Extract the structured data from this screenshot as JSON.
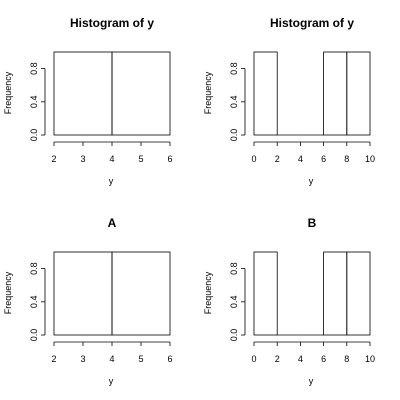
{
  "chart_data": [
    {
      "type": "bar",
      "title": "Histogram of y",
      "xlabel": "y",
      "ylabel": "Frequency",
      "xlim": [
        2,
        6
      ],
      "ylim": [
        0,
        1
      ],
      "xticks": [
        "2",
        "3",
        "4",
        "5",
        "6"
      ],
      "yticks": [
        "0.0",
        "0.4",
        "0.8"
      ],
      "bins": [
        {
          "x0": 2,
          "x1": 4,
          "count": 1
        },
        {
          "x0": 4,
          "x1": 6,
          "count": 1
        }
      ]
    },
    {
      "type": "bar",
      "title": "Histogram of y",
      "xlabel": "y",
      "ylabel": "Frequency",
      "xlim": [
        0,
        10
      ],
      "ylim": [
        0,
        1
      ],
      "xticks": [
        "0",
        "2",
        "4",
        "6",
        "8",
        "10"
      ],
      "yticks": [
        "0.0",
        "0.4",
        "0.8"
      ],
      "bins": [
        {
          "x0": 0,
          "x1": 2,
          "count": 1
        },
        {
          "x0": 2,
          "x1": 4,
          "count": 0
        },
        {
          "x0": 4,
          "x1": 6,
          "count": 0
        },
        {
          "x0": 6,
          "x1": 8,
          "count": 1
        },
        {
          "x0": 8,
          "x1": 10,
          "count": 1
        }
      ]
    },
    {
      "type": "bar",
      "title": "A",
      "xlabel": "y",
      "ylabel": "Frequency",
      "xlim": [
        2,
        6
      ],
      "ylim": [
        0,
        1
      ],
      "xticks": [
        "2",
        "3",
        "4",
        "5",
        "6"
      ],
      "yticks": [
        "0.0",
        "0.4",
        "0.8"
      ],
      "bins": [
        {
          "x0": 2,
          "x1": 4,
          "count": 1
        },
        {
          "x0": 4,
          "x1": 6,
          "count": 1
        }
      ]
    },
    {
      "type": "bar",
      "title": "B",
      "xlabel": "y",
      "ylabel": "Frequency",
      "xlim": [
        0,
        10
      ],
      "ylim": [
        0,
        1
      ],
      "xticks": [
        "0",
        "2",
        "4",
        "6",
        "8",
        "10"
      ],
      "yticks": [
        "0.0",
        "0.4",
        "0.8"
      ],
      "bins": [
        {
          "x0": 0,
          "x1": 2,
          "count": 1
        },
        {
          "x0": 2,
          "x1": 4,
          "count": 0
        },
        {
          "x0": 4,
          "x1": 6,
          "count": 0
        },
        {
          "x0": 6,
          "x1": 8,
          "count": 1
        },
        {
          "x0": 8,
          "x1": 10,
          "count": 1
        }
      ]
    }
  ]
}
